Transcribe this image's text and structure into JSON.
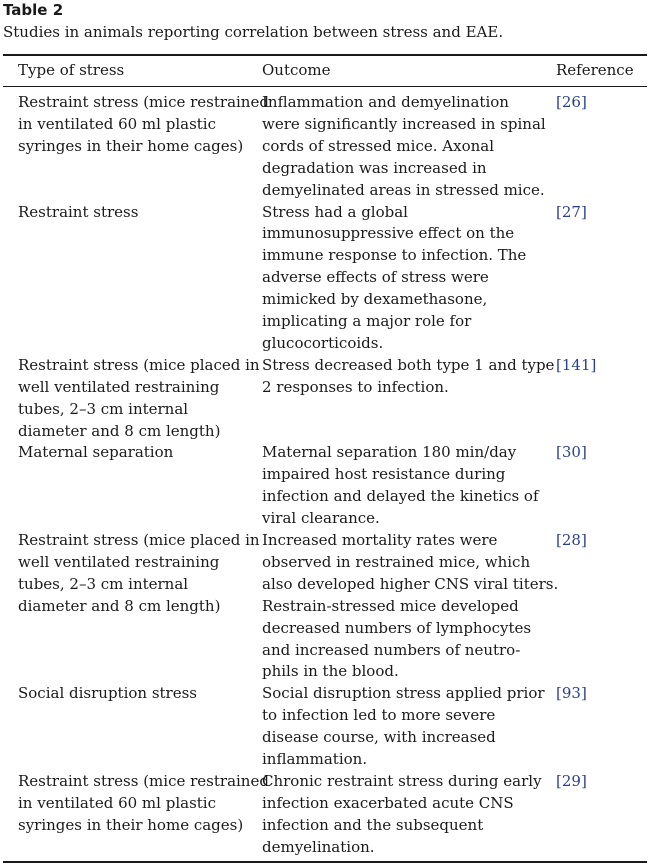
{
  "table": {
    "label": "Table 2",
    "caption": "Studies in animals reporting correlation between stress and EAE.",
    "headers": {
      "type": "Type of stress",
      "outcome": "Outcome",
      "reference": "Reference"
    },
    "rows": [
      {
        "type": [
          "Restraint stress (mice restrained",
          "in ventilated 60 ml plastic",
          "syringes in their home cages)"
        ],
        "outcome": [
          "Inflammation and demyelination",
          "were significantly increased in spinal",
          "cords of stressed mice. Axonal",
          "degradation was increased in",
          "demyelinated areas in stressed mice."
        ],
        "reference": "[26]"
      },
      {
        "type": [
          "Restraint stress"
        ],
        "outcome": [
          "Stress had a global",
          "immunosuppressive effect on the",
          "immune response to infection. The",
          "adverse effects of stress were",
          "mimicked by dexamethasone,",
          "implicating a major role for",
          "glucocorticoids."
        ],
        "reference": "[27]"
      },
      {
        "type": [
          "Restraint stress (mice placed in",
          "well ventilated restraining",
          "tubes, 2–3 cm internal",
          "diameter and 8 cm length)"
        ],
        "outcome": [
          "Stress decreased both type 1 and type",
          "2 responses to infection."
        ],
        "reference": "[141]"
      },
      {
        "type": [
          "Maternal separation"
        ],
        "outcome": [
          "Maternal separation 180 min/day",
          "impaired host resistance during",
          "infection and delayed the kinetics of",
          "viral clearance."
        ],
        "reference": "[30]"
      },
      {
        "type": [
          "Restraint stress (mice placed in",
          "well ventilated restraining",
          "tubes, 2–3 cm internal",
          "diameter and 8 cm length)"
        ],
        "outcome": [
          "Increased mortality rates were",
          "observed in restrained mice, which",
          "also developed higher CNS viral titers.",
          "Restrain-stressed mice developed",
          "decreased numbers of lymphocytes",
          "and increased numbers of neutro-",
          "phils in the blood."
        ],
        "reference": "[28]"
      },
      {
        "type": [
          "Social disruption stress"
        ],
        "outcome": [
          "Social disruption stress applied prior",
          "to infection led to more severe",
          "disease course, with increased",
          "inflammation."
        ],
        "reference": "[93]"
      },
      {
        "type": [
          "Restraint stress (mice restrained",
          "in ventilated 60 ml plastic",
          "syringes in their home cages)"
        ],
        "outcome": [
          "Chronic restraint stress during early",
          "infection exacerbated acute CNS",
          "infection and the subsequent",
          "demyelination."
        ],
        "reference": "[29]"
      }
    ]
  }
}
